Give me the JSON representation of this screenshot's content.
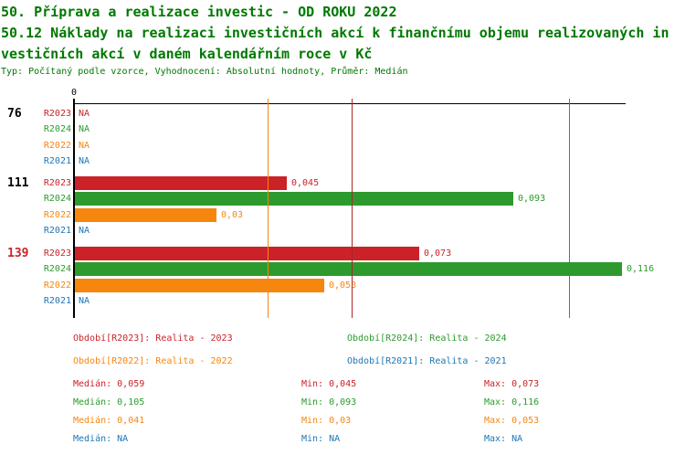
{
  "title": {
    "line1": "50. Příprava a realizace investic - OD ROKU 2022",
    "line2": "50.12 Náklady na realizaci investičních akcí k finančnímu objemu realizovaných in",
    "line3": "vestičních akcí v daném kalendářním roce v Kč",
    "meta": "Typ: Počítaný podle vzorce, Vyhodnocení: Absolutní hodnoty, Průměr: Medián"
  },
  "colors": {
    "title": "#007800",
    "R2023": "#cb2228",
    "R2024": "#2d9a2d",
    "R2022": "#f7860f",
    "R2021": "#2076b4",
    "axis": "#000000"
  },
  "chart_data": {
    "type": "bar",
    "orientation": "horizontal",
    "zero_tick_label": "0",
    "xlim": [
      0,
      0.127
    ],
    "categories": [
      "76",
      "111",
      "139"
    ],
    "category_colors": [
      "#000000",
      "#000000",
      "#cb2228"
    ],
    "series": [
      {
        "name": "R2023",
        "color": "#cb2228",
        "values": [
          null,
          0.045,
          0.073
        ],
        "labels": [
          "NA",
          "0,045",
          "0,073"
        ]
      },
      {
        "name": "R2024",
        "color": "#2d9a2d",
        "values": [
          null,
          0.093,
          0.116
        ],
        "labels": [
          "NA",
          "0,093",
          "0,116"
        ]
      },
      {
        "name": "R2022",
        "color": "#f7860f",
        "values": [
          null,
          0.03,
          0.053
        ],
        "labels": [
          "NA",
          "0,03",
          "0,053"
        ]
      },
      {
        "name": "R2021",
        "color": "#2076b4",
        "values": [
          null,
          null,
          null
        ],
        "labels": [
          "NA",
          "NA",
          "NA"
        ]
      }
    ],
    "median_lines": [
      {
        "series": "R2022",
        "value": 0.041,
        "color": "#f7860f"
      },
      {
        "series": "R2023",
        "value": 0.059,
        "color": "#aa2626"
      },
      {
        "series": "R2024",
        "value": 0.105,
        "color": "#2d9a2d"
      }
    ]
  },
  "legend": [
    {
      "series": "R2023",
      "text": "Období[R2023]: Realita - 2023",
      "color": "#cb2228"
    },
    {
      "series": "R2024",
      "text": "Období[R2024]: Realita - 2024",
      "color": "#2d9a2d"
    },
    {
      "series": "R2022",
      "text": "Období[R2022]: Realita - 2022",
      "color": "#f7860f"
    },
    {
      "series": "R2021",
      "text": "Období[R2021]: Realita - 2021",
      "color": "#2076b4"
    }
  ],
  "stats_rows": [
    {
      "series": "R2023",
      "color": "#cb2228",
      "median_text": "Medián: 0,059",
      "min_text": "Min: 0,045",
      "max_text": "Max: 0,073"
    },
    {
      "series": "R2024",
      "color": "#2d9a2d",
      "median_text": "Medián: 0,105",
      "min_text": "Min: 0,093",
      "max_text": "Max: 0,116"
    },
    {
      "series": "R2022",
      "color": "#f7860f",
      "median_text": "Medián: 0,041",
      "min_text": "Min: 0,03",
      "max_text": "Max: 0,053"
    },
    {
      "series": "R2021",
      "color": "#2076b4",
      "median_text": "Medián: NA",
      "min_text": "Min: NA",
      "max_text": "Max: NA"
    }
  ]
}
